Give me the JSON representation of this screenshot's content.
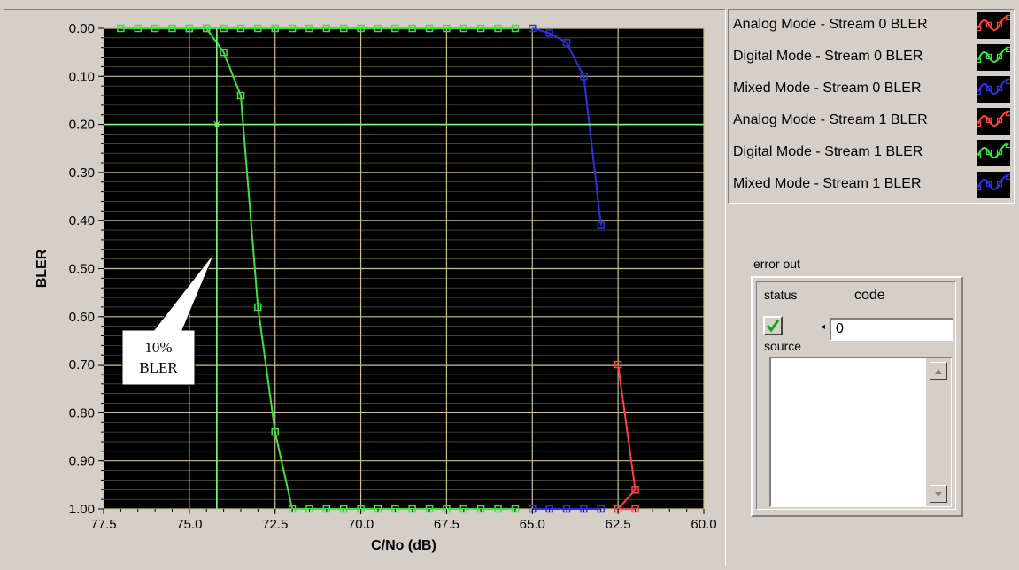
{
  "chart_data": {
    "type": "line",
    "xlabel": "C/No (dB)",
    "ylabel": "BLER",
    "xlim": [
      77.5,
      60.0
    ],
    "ylim": [
      0.0,
      1.0
    ],
    "x_reversed": true,
    "y_reversed": true,
    "x_ticks": [
      "77.5",
      "75.0",
      "72.5",
      "70.0",
      "67.5",
      "65.0",
      "62.5",
      "60.0"
    ],
    "y_ticks": [
      "0.00",
      "0.10",
      "0.20",
      "0.30",
      "0.40",
      "0.50",
      "0.60",
      "0.70",
      "0.80",
      "0.90",
      "1.00"
    ],
    "background": "#000000",
    "grid": true,
    "grid_color": "#c8c28a",
    "series": [
      {
        "name": "Analog Mode - Stream 0 BLER",
        "color": "#ff4040",
        "x": [],
        "y": []
      },
      {
        "name": "Digital Mode - Stream 0 BLER",
        "color": "#40e040",
        "x": [
          75.0,
          74.5,
          74.0,
          73.5,
          73.0,
          72.5,
          72.0,
          71.5,
          71.0,
          70.5,
          70.0,
          69.5,
          69.0,
          68.5,
          68.0,
          67.5,
          67.0,
          66.5,
          66.0,
          65.5
        ],
        "y": [
          0.0,
          0.0,
          0.05,
          0.14,
          0.58,
          0.84,
          1.0,
          1.0,
          1.0,
          1.0,
          1.0,
          1.0,
          1.0,
          1.0,
          1.0,
          1.0,
          1.0,
          1.0,
          1.0,
          1.0
        ]
      },
      {
        "name": "Mixed Mode - Stream 0 BLER",
        "color": "#3030e0",
        "x": [
          65.0,
          64.5,
          64.0,
          63.5,
          63.0
        ],
        "y": [
          0.0,
          0.01,
          0.03,
          0.1,
          0.41
        ]
      },
      {
        "name": "Analog Mode - Stream 1 BLER",
        "color": "#ff4040",
        "x": [
          62.5,
          62.0,
          62.5,
          62.0
        ],
        "y": [
          0.7,
          0.96,
          1.0,
          1.0
        ]
      },
      {
        "name": "Digital Mode - Stream 1 BLER",
        "color": "#40e040",
        "x": [
          77.0,
          76.5,
          76.0,
          75.5,
          75.0,
          74.5,
          74.0,
          73.5,
          73.0,
          72.5,
          72.0,
          71.5,
          71.0,
          70.5,
          70.0,
          69.5,
          69.0,
          68.5,
          68.0,
          67.5,
          67.0,
          66.5,
          66.0,
          65.5
        ],
        "y": [
          0.0,
          0.0,
          0.0,
          0.0,
          0.0,
          0.0,
          0.0,
          0.0,
          0.0,
          0.0,
          0.0,
          0.0,
          0.0,
          0.0,
          0.0,
          0.0,
          0.0,
          0.0,
          0.0,
          0.0,
          0.0,
          0.0,
          0.0,
          0.0
        ]
      },
      {
        "name": "Mixed Mode - Stream 1 BLER",
        "color": "#3030e0",
        "x": [
          65.0,
          64.5,
          64.0,
          63.5,
          63.0
        ],
        "y": [
          1.0,
          1.0,
          1.0,
          1.0,
          1.0
        ]
      }
    ],
    "cursor": {
      "x": 74.2,
      "y": 0.2,
      "color": "#7fff7f"
    },
    "annotations": [
      {
        "lines": [
          "10%",
          "BLER"
        ]
      }
    ]
  },
  "legend": {
    "items": [
      {
        "label": "Analog Mode - Stream 0 BLER",
        "color": "#ff4040"
      },
      {
        "label": "Digital Mode - Stream 0 BLER",
        "color": "#40e040"
      },
      {
        "label": "Mixed Mode - Stream 0 BLER",
        "color": "#3030e0"
      },
      {
        "label": "Analog Mode - Stream 1 BLER",
        "color": "#ff4040"
      },
      {
        "label": "Digital Mode - Stream 1 BLER",
        "color": "#40e040"
      },
      {
        "label": "Mixed Mode - Stream 1 BLER",
        "color": "#3030e0"
      }
    ]
  },
  "error_out": {
    "title": "error out",
    "status_label": "status",
    "code_label": "code",
    "code_value": "0",
    "source_label": "source",
    "source_value": "",
    "status_icon": "check-icon"
  }
}
